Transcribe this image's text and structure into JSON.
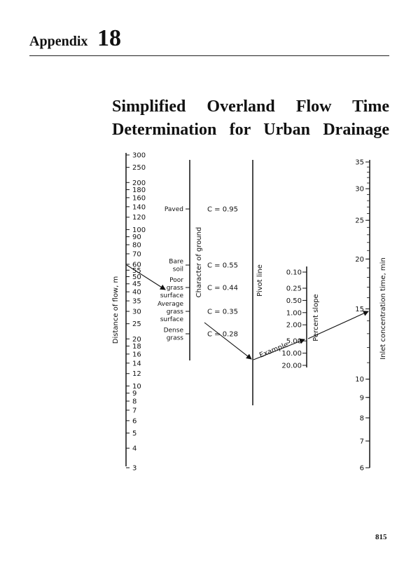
{
  "header": {
    "appendix_label": "Appendix",
    "appendix_number": "18"
  },
  "title": {
    "line1": "Simplified Overland Flow Time",
    "line2": "Determination for Urban Drainage"
  },
  "nomograph": {
    "distance_scale": {
      "label": "Distance of flow, m",
      "ticks": [
        "300",
        "250",
        "200",
        "180",
        "160",
        "140",
        "120",
        "100",
        "90",
        "80",
        "70",
        "60",
        "55",
        "50",
        "45",
        "40",
        "35",
        "30",
        "25",
        "20",
        "18",
        "16",
        "14",
        "12",
        "10",
        "9",
        "8",
        "7",
        "6",
        "5",
        "4",
        "3"
      ]
    },
    "ground_scale": {
      "label": "Character of ground",
      "items": [
        {
          "name": "Paved",
          "coefficient": "C = 0.95"
        },
        {
          "name": "Bare soil",
          "coefficient": "C = 0.55"
        },
        {
          "name": "Poor grass surface",
          "coefficient": "C = 0.44"
        },
        {
          "name": "Average grass surface",
          "coefficient": "C = 0.35"
        },
        {
          "name": "Dense grass",
          "coefficient": "C = 0.28"
        }
      ]
    },
    "pivot_line": {
      "label": "Pivot line"
    },
    "slope_scale": {
      "label": "Percent slope",
      "ticks": [
        "0.10",
        "0.25",
        "0.50",
        "1.00",
        "2.00",
        "5.00",
        "10.00",
        "20.00"
      ]
    },
    "time_scale": {
      "label": "Inlet concentration time, min",
      "ticks": [
        "35",
        "30",
        "25",
        "20",
        "15",
        "10",
        "9",
        "8",
        "7",
        "6"
      ]
    },
    "example_label": "Example"
  },
  "page_number": "815"
}
